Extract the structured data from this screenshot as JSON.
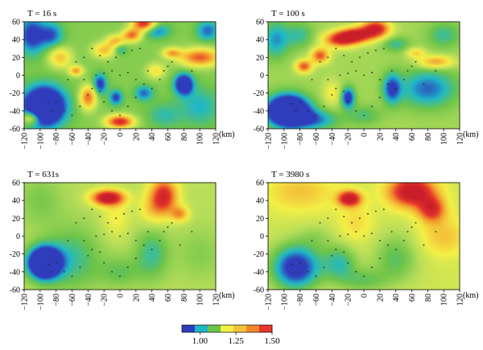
{
  "chart_data": [
    {
      "type": "heatmap",
      "title": "T = 16 s",
      "xlabel": "(km)",
      "xlim": [
        -120,
        120
      ],
      "ylim": [
        -60,
        60
      ],
      "xticks": [
        "-120",
        "-100",
        "-80",
        "-60",
        "-40",
        "-20",
        "0",
        "20",
        "40",
        "60",
        "80",
        "100",
        "120"
      ],
      "yticks": [
        "60",
        "40",
        "20",
        "0",
        "-20",
        "-40",
        "-60"
      ],
      "base": 1.05,
      "anomalies": [
        {
          "x": 30,
          "y": 58,
          "sx": 10,
          "sy": 6,
          "a": 0.4
        },
        {
          "x": 15,
          "y": 45,
          "sx": 8,
          "sy": 5,
          "a": 0.3
        },
        {
          "x": -5,
          "y": 38,
          "sx": 8,
          "sy": 5,
          "a": 0.22
        },
        {
          "x": -20,
          "y": 28,
          "sx": 10,
          "sy": 6,
          "a": 0.2
        },
        {
          "x": 100,
          "y": 20,
          "sx": 18,
          "sy": 7,
          "a": 0.32
        },
        {
          "x": 65,
          "y": 25,
          "sx": 8,
          "sy": 4,
          "a": 0.22
        },
        {
          "x": -75,
          "y": 20,
          "sx": 10,
          "sy": 8,
          "a": 0.2
        },
        {
          "x": -55,
          "y": 5,
          "sx": 6,
          "sy": 4,
          "a": 0.25
        },
        {
          "x": -40,
          "y": -25,
          "sx": 7,
          "sy": 9,
          "a": 0.3
        },
        {
          "x": 0,
          "y": -52,
          "sx": 12,
          "sy": 5,
          "a": 0.4
        },
        {
          "x": -112,
          "y": -48,
          "sx": 8,
          "sy": 5,
          "a": 0.22
        },
        {
          "x": 45,
          "y": 5,
          "sx": 8,
          "sy": 6,
          "a": 0.15
        },
        {
          "x": -95,
          "y": -35,
          "sx": 18,
          "sy": 15,
          "a": -0.42
        },
        {
          "x": -110,
          "y": 45,
          "sx": 12,
          "sy": 15,
          "a": -0.2
        },
        {
          "x": -85,
          "y": 45,
          "sx": 10,
          "sy": 10,
          "a": -0.15
        },
        {
          "x": 80,
          "y": -10,
          "sx": 8,
          "sy": 8,
          "a": -0.3
        },
        {
          "x": 45,
          "y": 50,
          "sx": 12,
          "sy": 6,
          "a": -0.15
        },
        {
          "x": 110,
          "y": 50,
          "sx": 10,
          "sy": 8,
          "a": -0.15
        },
        {
          "x": -25,
          "y": -10,
          "sx": 6,
          "sy": 8,
          "a": -0.2
        },
        {
          "x": -5,
          "y": -25,
          "sx": 6,
          "sy": 6,
          "a": -0.18
        },
        {
          "x": 0,
          "y": 30,
          "sx": 6,
          "sy": 5,
          "a": -0.12
        },
        {
          "x": 100,
          "y": -35,
          "sx": 18,
          "sy": 15,
          "a": -0.1
        },
        {
          "x": 55,
          "y": -45,
          "sx": 15,
          "sy": 10,
          "a": -0.08
        },
        {
          "x": 30,
          "y": -20,
          "sx": 8,
          "sy": 6,
          "a": -0.15
        }
      ],
      "stations": [
        [
          -90,
          -32
        ],
        [
          -85,
          -40
        ],
        [
          -80,
          -30
        ],
        [
          -70,
          -40
        ],
        [
          -60,
          -45
        ],
        [
          -50,
          -35
        ],
        [
          -40,
          -22
        ],
        [
          -35,
          -15
        ],
        [
          -25,
          -18
        ],
        [
          -45,
          -5
        ],
        [
          -30,
          0
        ],
        [
          -20,
          2
        ],
        [
          -10,
          5
        ],
        [
          0,
          0
        ],
        [
          10,
          3
        ],
        [
          20,
          -5
        ],
        [
          30,
          -10
        ],
        [
          40,
          -15
        ],
        [
          50,
          -5
        ],
        [
          55,
          5
        ],
        [
          60,
          10
        ],
        [
          65,
          15
        ],
        [
          75,
          -10
        ],
        [
          90,
          5
        ],
        [
          -15,
          15
        ],
        [
          -5,
          20
        ],
        [
          5,
          25
        ],
        [
          15,
          28
        ],
        [
          25,
          30
        ],
        [
          -35,
          30
        ],
        [
          -45,
          20
        ],
        [
          -55,
          15
        ],
        [
          -20,
          -30
        ],
        [
          -10,
          -40
        ],
        [
          0,
          -45
        ],
        [
          10,
          -35
        ],
        [
          20,
          -25
        ],
        [
          -65,
          -5
        ],
        [
          35,
          5
        ],
        [
          -25,
          22
        ]
      ]
    },
    {
      "type": "heatmap",
      "title": "T = 100 s",
      "xlabel": "(km)",
      "xlim": [
        -120,
        120
      ],
      "ylim": [
        -60,
        60
      ],
      "xticks": [
        "-120",
        "-100",
        "-80",
        "-60",
        "-40",
        "-20",
        "0",
        "20",
        "40",
        "60",
        "80",
        "100",
        "120"
      ],
      "yticks": [
        "60",
        "40",
        "20",
        "0",
        "-20",
        "-40",
        "-60"
      ],
      "base": 1.08,
      "anomalies": [
        {
          "x": -30,
          "y": 40,
          "sx": 14,
          "sy": 6,
          "a": 0.35
        },
        {
          "x": -10,
          "y": 45,
          "sx": 14,
          "sy": 6,
          "a": 0.4
        },
        {
          "x": 15,
          "y": 52,
          "sx": 12,
          "sy": 7,
          "a": 0.4
        },
        {
          "x": -55,
          "y": 22,
          "sx": 8,
          "sy": 6,
          "a": 0.3
        },
        {
          "x": -75,
          "y": 10,
          "sx": 7,
          "sy": 5,
          "a": 0.3
        },
        {
          "x": 90,
          "y": 15,
          "sx": 15,
          "sy": 5,
          "a": 0.22
        },
        {
          "x": 65,
          "y": 25,
          "sx": 8,
          "sy": 4,
          "a": 0.15
        },
        {
          "x": -40,
          "y": -20,
          "sx": 8,
          "sy": 10,
          "a": 0.1
        },
        {
          "x": -95,
          "y": -40,
          "sx": 18,
          "sy": 12,
          "a": -0.5
        },
        {
          "x": -110,
          "y": 40,
          "sx": 12,
          "sy": 15,
          "a": -0.15
        },
        {
          "x": -20,
          "y": -25,
          "sx": 6,
          "sy": 8,
          "a": -0.25
        },
        {
          "x": 35,
          "y": -15,
          "sx": 8,
          "sy": 12,
          "a": -0.2
        },
        {
          "x": 80,
          "y": -15,
          "sx": 25,
          "sy": 15,
          "a": -0.18
        },
        {
          "x": 40,
          "y": 35,
          "sx": 12,
          "sy": 6,
          "a": -0.1
        },
        {
          "x": 100,
          "y": 45,
          "sx": 15,
          "sy": 10,
          "a": -0.1
        },
        {
          "x": -60,
          "y": -50,
          "sx": 20,
          "sy": 8,
          "a": -0.15
        },
        {
          "x": 0,
          "y": -45,
          "sx": 15,
          "sy": 8,
          "a": -0.08
        },
        {
          "x": -80,
          "y": 45,
          "sx": 12,
          "sy": 10,
          "a": -0.1
        }
      ],
      "stations": [
        [
          -90,
          -32
        ],
        [
          -85,
          -40
        ],
        [
          -80,
          -30
        ],
        [
          -70,
          -40
        ],
        [
          -60,
          -45
        ],
        [
          -50,
          -35
        ],
        [
          -40,
          -22
        ],
        [
          -35,
          -15
        ],
        [
          -25,
          -18
        ],
        [
          -45,
          -5
        ],
        [
          -30,
          0
        ],
        [
          -20,
          2
        ],
        [
          -10,
          5
        ],
        [
          0,
          0
        ],
        [
          10,
          3
        ],
        [
          20,
          -5
        ],
        [
          30,
          -10
        ],
        [
          40,
          -15
        ],
        [
          50,
          -5
        ],
        [
          55,
          5
        ],
        [
          60,
          10
        ],
        [
          65,
          15
        ],
        [
          75,
          -10
        ],
        [
          90,
          5
        ],
        [
          -15,
          15
        ],
        [
          -5,
          20
        ],
        [
          5,
          25
        ],
        [
          15,
          28
        ],
        [
          25,
          30
        ],
        [
          -35,
          30
        ],
        [
          -45,
          20
        ],
        [
          -55,
          15
        ],
        [
          -20,
          -30
        ],
        [
          -10,
          -40
        ],
        [
          0,
          -45
        ],
        [
          10,
          -35
        ],
        [
          20,
          -25
        ],
        [
          -65,
          -5
        ],
        [
          35,
          5
        ],
        [
          -25,
          22
        ]
      ]
    },
    {
      "type": "heatmap",
      "title": "T = 631s",
      "xlabel": "(km)",
      "xlim": [
        -120,
        120
      ],
      "ylim": [
        -60,
        60
      ],
      "xticks": [
        "-120",
        "-100",
        "-80",
        "-60",
        "-40",
        "-20",
        "0",
        "20",
        "40",
        "60",
        "80",
        "100",
        "120"
      ],
      "yticks": [
        "60",
        "40",
        "20",
        "0",
        "-20",
        "-40",
        "-60"
      ],
      "base": 1.1,
      "anomalies": [
        {
          "x": -15,
          "y": 43,
          "sx": 14,
          "sy": 6,
          "a": 0.45
        },
        {
          "x": 55,
          "y": 45,
          "sx": 12,
          "sy": 14,
          "a": 0.35
        },
        {
          "x": 75,
          "y": 25,
          "sx": 8,
          "sy": 6,
          "a": 0.2
        },
        {
          "x": 40,
          "y": 30,
          "sx": 12,
          "sy": 12,
          "a": 0.1
        },
        {
          "x": -5,
          "y": 20,
          "sx": 12,
          "sy": 15,
          "a": 0.08
        },
        {
          "x": -95,
          "y": -30,
          "sx": 14,
          "sy": 12,
          "a": -0.5
        },
        {
          "x": -60,
          "y": -25,
          "sx": 25,
          "sy": 25,
          "a": -0.12
        },
        {
          "x": 40,
          "y": -20,
          "sx": 15,
          "sy": 20,
          "a": -0.12
        },
        {
          "x": -100,
          "y": 40,
          "sx": 20,
          "sy": 20,
          "a": -0.06
        },
        {
          "x": 100,
          "y": -20,
          "sx": 20,
          "sy": 20,
          "a": -0.05
        },
        {
          "x": 0,
          "y": -40,
          "sx": 18,
          "sy": 12,
          "a": -0.08
        }
      ],
      "stations": [
        [
          -90,
          -32
        ],
        [
          -85,
          -40
        ],
        [
          -80,
          -30
        ],
        [
          -70,
          -40
        ],
        [
          -60,
          -45
        ],
        [
          -50,
          -35
        ],
        [
          -40,
          -22
        ],
        [
          -35,
          -15
        ],
        [
          -25,
          -18
        ],
        [
          -45,
          -5
        ],
        [
          -30,
          0
        ],
        [
          -20,
          2
        ],
        [
          -10,
          5
        ],
        [
          0,
          0
        ],
        [
          10,
          3
        ],
        [
          20,
          -5
        ],
        [
          30,
          -10
        ],
        [
          40,
          -15
        ],
        [
          50,
          -5
        ],
        [
          55,
          5
        ],
        [
          60,
          10
        ],
        [
          65,
          15
        ],
        [
          75,
          -10
        ],
        [
          90,
          5
        ],
        [
          -15,
          15
        ],
        [
          -5,
          20
        ],
        [
          5,
          25
        ],
        [
          15,
          28
        ],
        [
          25,
          30
        ],
        [
          -35,
          30
        ],
        [
          -45,
          20
        ],
        [
          -55,
          15
        ],
        [
          -20,
          -30
        ],
        [
          -10,
          -40
        ],
        [
          0,
          -45
        ],
        [
          10,
          -35
        ],
        [
          20,
          -25
        ],
        [
          -65,
          -5
        ],
        [
          35,
          5
        ],
        [
          -25,
          22
        ]
      ]
    },
    {
      "type": "heatmap",
      "title": "T = 3980 s",
      "xlabel": "(km)",
      "xlim": [
        -120,
        120
      ],
      "ylim": [
        -60,
        60
      ],
      "xticks": [
        "-120",
        "-100",
        "-80",
        "-60",
        "-40",
        "-20",
        "0",
        "20",
        "40",
        "60",
        "80",
        "100",
        "120"
      ],
      "yticks": [
        "60",
        "40",
        "20",
        "0",
        "-20",
        "-40",
        "-60"
      ],
      "base": 1.13,
      "anomalies": [
        {
          "x": -18,
          "y": 42,
          "sx": 10,
          "sy": 6,
          "a": 0.42
        },
        {
          "x": 60,
          "y": 50,
          "sx": 20,
          "sy": 12,
          "a": 0.42
        },
        {
          "x": 85,
          "y": 30,
          "sx": 12,
          "sy": 10,
          "a": 0.3
        },
        {
          "x": -80,
          "y": 50,
          "sx": 30,
          "sy": 15,
          "a": 0.12
        },
        {
          "x": 100,
          "y": 0,
          "sx": 20,
          "sy": 15,
          "a": 0.12
        },
        {
          "x": -10,
          "y": 15,
          "sx": 15,
          "sy": 15,
          "a": 0.08
        },
        {
          "x": -85,
          "y": -35,
          "sx": 22,
          "sy": 18,
          "a": -0.3
        },
        {
          "x": -30,
          "y": -30,
          "sx": 15,
          "sy": 15,
          "a": -0.15
        },
        {
          "x": 40,
          "y": -25,
          "sx": 20,
          "sy": 20,
          "a": -0.12
        },
        {
          "x": 0,
          "y": -50,
          "sx": 20,
          "sy": 10,
          "a": -0.1
        },
        {
          "x": -60,
          "y": 0,
          "sx": 15,
          "sy": 10,
          "a": -0.05
        }
      ],
      "stations": [
        [
          -90,
          -32
        ],
        [
          -85,
          -40
        ],
        [
          -80,
          -30
        ],
        [
          -70,
          -40
        ],
        [
          -60,
          -45
        ],
        [
          -50,
          -35
        ],
        [
          -40,
          -22
        ],
        [
          -35,
          -15
        ],
        [
          -25,
          -18
        ],
        [
          -45,
          -5
        ],
        [
          -30,
          0
        ],
        [
          -20,
          2
        ],
        [
          -10,
          5
        ],
        [
          0,
          0
        ],
        [
          10,
          3
        ],
        [
          20,
          -5
        ],
        [
          30,
          -10
        ],
        [
          40,
          -15
        ],
        [
          50,
          -5
        ],
        [
          55,
          5
        ],
        [
          60,
          10
        ],
        [
          65,
          15
        ],
        [
          75,
          -10
        ],
        [
          90,
          5
        ],
        [
          -15,
          15
        ],
        [
          -5,
          20
        ],
        [
          5,
          25
        ],
        [
          15,
          28
        ],
        [
          25,
          30
        ],
        [
          -35,
          30
        ],
        [
          -45,
          20
        ],
        [
          -55,
          15
        ],
        [
          -20,
          -30
        ],
        [
          -10,
          -40
        ],
        [
          0,
          -45
        ],
        [
          10,
          -35
        ],
        [
          20,
          -25
        ],
        [
          -65,
          -5
        ],
        [
          35,
          5
        ],
        [
          -25,
          22
        ]
      ]
    }
  ],
  "colorbar": {
    "range": [
      0.875,
      1.5
    ],
    "stops": [
      {
        "v": 0.875,
        "c": "#2f3dbd"
      },
      {
        "v": 0.95,
        "c": "#1fb8c8"
      },
      {
        "v": 1.025,
        "c": "#6cc44a"
      },
      {
        "v": 1.1,
        "c": "#b9de5a"
      },
      {
        "v": 1.175,
        "c": "#f3f046"
      },
      {
        "v": 1.25,
        "c": "#f3c33a"
      },
      {
        "v": 1.325,
        "c": "#f0882a"
      },
      {
        "v": 1.4,
        "c": "#e6362a"
      },
      {
        "v": 1.5,
        "c": "#c81e2a"
      }
    ],
    "blocks": [
      "#2f3dbd",
      "#1fb8c8",
      "#6cc44a",
      "#f3f046",
      "#f3c33a",
      "#f0882a",
      "#e6362a"
    ],
    "labels": [
      {
        "v": 1.0,
        "text": "1.00"
      },
      {
        "v": 1.25,
        "text": "1.25"
      },
      {
        "v": 1.5,
        "text": "1.50"
      }
    ]
  }
}
